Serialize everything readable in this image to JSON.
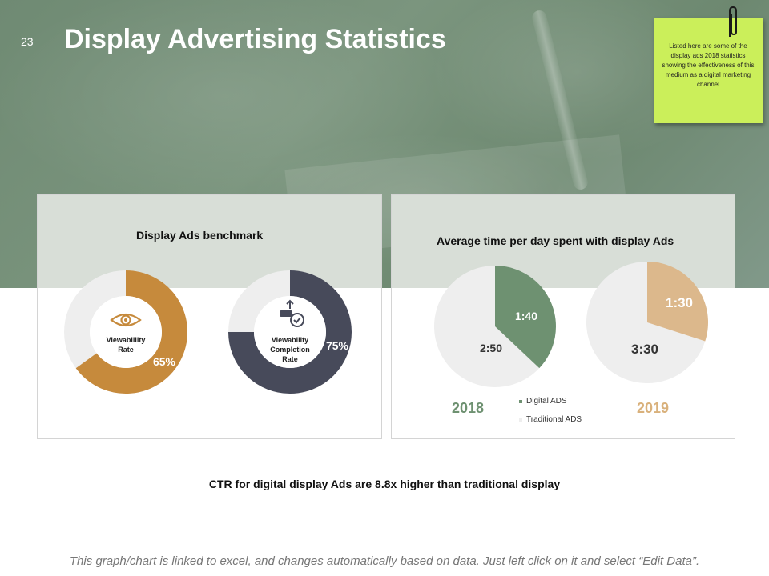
{
  "slide": {
    "number": "23",
    "title": "Display Advertising Statistics",
    "note": "Listed here are some of the display ads 2018 statistics showing the effectiveness of this medium as a digital marketing channel",
    "ctr_text": "CTR for digital display Ads are 8.8x higher than traditional display",
    "footer": "This graph/chart is linked to excel, and changes automatically based on data. Just left click on it and select “Edit Data”."
  },
  "colors": {
    "accent_gold": "#c68a3c",
    "accent_navy": "#474a5a",
    "accent_green": "#6e9171",
    "accent_tan": "#dcb88c",
    "track": "#eeeeee",
    "year_2018": "#6e9171",
    "year_2019": "#d9b17c"
  },
  "chart_data": [
    {
      "type": "pie",
      "variant": "donut",
      "title": "Display Ads benchmark",
      "label": "Viewablility Rate",
      "icon": "eye-icon",
      "value_label": "65%",
      "values": [
        65,
        35
      ],
      "series_color": "#c68a3c"
    },
    {
      "type": "pie",
      "variant": "donut",
      "title": "",
      "label": "Viewability Completion Rate",
      "icon": "upload-check-icon",
      "value_label": "75%",
      "values": [
        75,
        25
      ],
      "series_color": "#474a5a"
    },
    {
      "type": "pie",
      "title": "Average time per day spent with display Ads",
      "year": "2018",
      "categories": [
        "Digital ADS",
        "Traditional ADS"
      ],
      "value_labels": [
        "1:40",
        "2:50"
      ],
      "values": [
        100,
        170
      ],
      "legend": "bottom"
    },
    {
      "type": "pie",
      "title": "",
      "year": "2019",
      "categories": [
        "Digital ADS",
        "Traditional ADS"
      ],
      "value_labels": [
        "1:30",
        "3:30"
      ],
      "values": [
        90,
        210
      ]
    }
  ]
}
